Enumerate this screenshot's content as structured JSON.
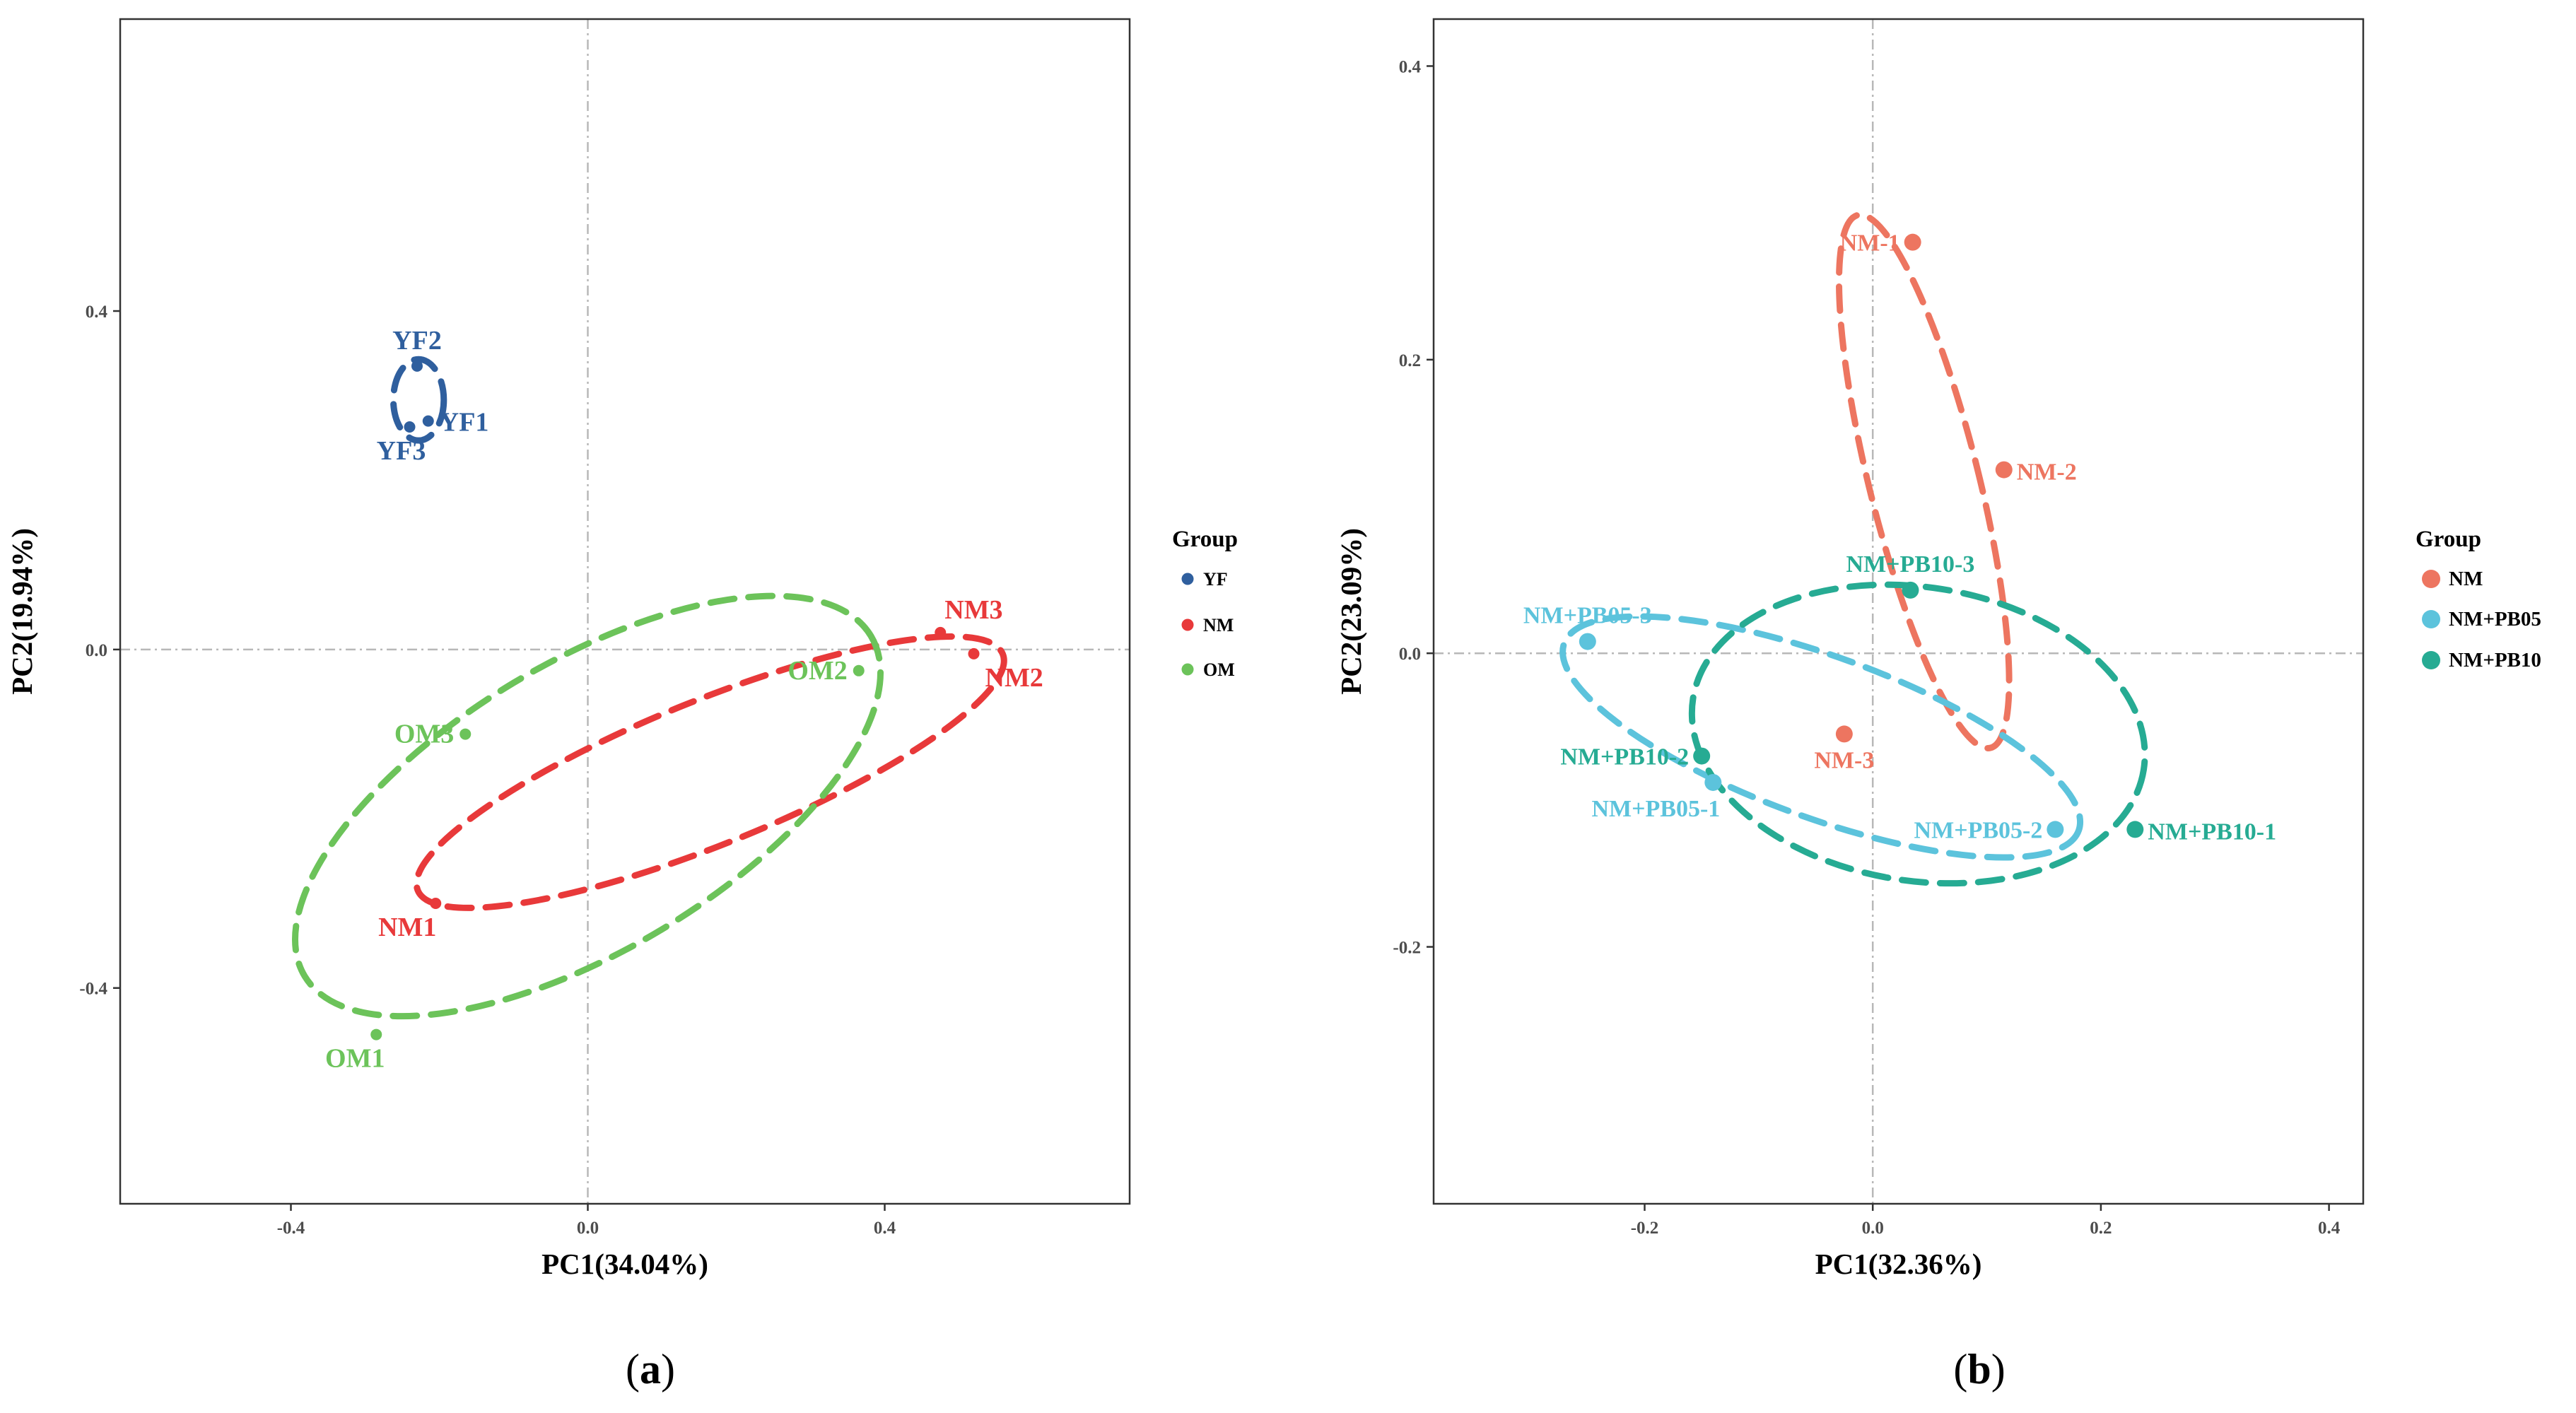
{
  "chart_data": [
    {
      "panel": "a",
      "type": "scatter",
      "caption": "a",
      "xlabel": "PC1(34.04%)",
      "ylabel": "PC2(19.94%)",
      "xlim": [
        -0.63,
        0.73
      ],
      "ylim": [
        -0.655,
        0.745
      ],
      "xticks": [
        -0.4,
        0.0,
        0.4
      ],
      "xtick_labels": [
        "-0.4",
        "0.0",
        "0.4"
      ],
      "yticks": [
        -0.4,
        0.0,
        0.4
      ],
      "ytick_labels": [
        "-0.4",
        "0.0",
        "0.4"
      ],
      "reference_lines": {
        "x": 0,
        "y": 0
      },
      "legend": {
        "title": "Group",
        "position": "right"
      },
      "series": [
        {
          "name": "YF",
          "color": "#2f5f9e",
          "points": [
            {
              "label": "YF1",
              "x": -0.215,
              "y": 0.27,
              "label_pos": "right"
            },
            {
              "label": "YF2",
              "x": -0.23,
              "y": 0.335,
              "label_pos": "above"
            },
            {
              "label": "YF3",
              "x": -0.24,
              "y": 0.263,
              "label_pos": "below"
            }
          ],
          "ellipse": {
            "cx": -0.228,
            "cy": 0.295,
            "rx": 0.034,
            "ry": 0.048,
            "angle_deg": 0
          }
        },
        {
          "name": "NM",
          "color": "#e8393a",
          "points": [
            {
              "label": "NM1",
              "x": -0.205,
              "y": -0.3,
              "label_pos": "below-left"
            },
            {
              "label": "NM2",
              "x": 0.52,
              "y": -0.005,
              "label_pos": "below-right"
            },
            {
              "label": "NM3",
              "x": 0.475,
              "y": 0.02,
              "label_pos": "above-right"
            }
          ],
          "ellipse": {
            "cx": 0.165,
            "cy": -0.145,
            "rx": 0.425,
            "ry": 0.085,
            "angle_deg": 22
          }
        },
        {
          "name": "OM",
          "color": "#6cc35a",
          "points": [
            {
              "label": "OM1",
              "x": -0.285,
              "y": -0.455,
              "label_pos": "below-left"
            },
            {
              "label": "OM2",
              "x": 0.365,
              "y": -0.025,
              "label_pos": "left"
            },
            {
              "label": "OM3",
              "x": -0.165,
              "y": -0.1,
              "label_pos": "left"
            }
          ],
          "ellipse": {
            "cx": 0.0,
            "cy": -0.185,
            "rx": 0.445,
            "ry": 0.17,
            "angle_deg": 31
          }
        }
      ]
    },
    {
      "panel": "b",
      "type": "scatter",
      "caption": "b",
      "xlabel": "PC1(32.36%)",
      "ylabel": "PC2(23.09%)",
      "xlim": [
        -0.385,
        0.43
      ],
      "ylim": [
        -0.375,
        0.432
      ],
      "xticks": [
        -0.2,
        0.0,
        0.2,
        0.4
      ],
      "xtick_labels": [
        "-0.2",
        "0.0",
        "0.2",
        "0.4"
      ],
      "yticks": [
        -0.2,
        0.0,
        0.2,
        0.4
      ],
      "ytick_labels": [
        "-0.2",
        "0.0",
        "0.2",
        "0.4"
      ],
      "reference_lines": {
        "x": 0,
        "y": 0
      },
      "legend": {
        "title": "Group",
        "position": "right"
      },
      "series": [
        {
          "name": "NM",
          "color": "#ed7560",
          "points": [
            {
              "label": "NM-1",
              "x": 0.035,
              "y": 0.28,
              "label_pos": "left"
            },
            {
              "label": "NM-2",
              "x": 0.115,
              "y": 0.125,
              "label_pos": "right"
            },
            {
              "label": "NM-3",
              "x": -0.025,
              "y": -0.055,
              "label_pos": "below"
            }
          ],
          "ellipse": {
            "cx": 0.045,
            "cy": 0.117,
            "rx": 0.048,
            "ry": 0.187,
            "angle_deg": 14
          }
        },
        {
          "name": "NM+PB05",
          "color": "#5cc3dc",
          "points": [
            {
              "label": "NM+PB05-1",
              "x": -0.14,
              "y": -0.088,
              "label_pos": "below-left"
            },
            {
              "label": "NM+PB05-2",
              "x": 0.16,
              "y": -0.12,
              "label_pos": "left"
            },
            {
              "label": "NM+PB05-3",
              "x": -0.25,
              "y": 0.008,
              "label_pos": "above"
            }
          ],
          "ellipse": {
            "cx": -0.045,
            "cy": -0.057,
            "rx": 0.24,
            "ry": 0.055,
            "angle_deg": -20
          }
        },
        {
          "name": "NM+PB10",
          "color": "#26ab93",
          "points": [
            {
              "label": "NM+PB10-1",
              "x": 0.23,
              "y": -0.12,
              "label_pos": "right"
            },
            {
              "label": "NM+PB10-2",
              "x": -0.15,
              "y": -0.07,
              "label_pos": "left"
            },
            {
              "label": "NM+PB10-3",
              "x": 0.033,
              "y": 0.043,
              "label_pos": "above"
            }
          ],
          "ellipse": {
            "cx": 0.04,
            "cy": -0.055,
            "rx": 0.2,
            "ry": 0.1,
            "angle_deg": -9
          }
        }
      ]
    }
  ]
}
